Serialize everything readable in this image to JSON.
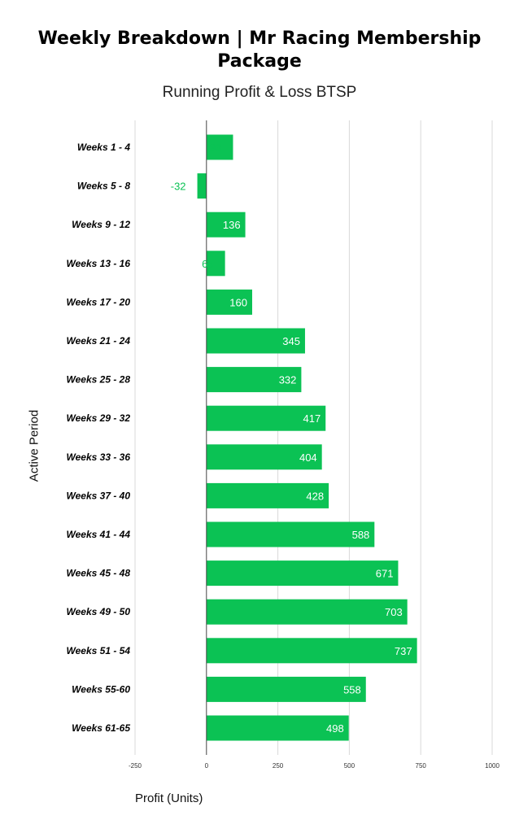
{
  "chart_data": {
    "type": "bar",
    "orientation": "horizontal",
    "title": "Weekly Breakdown | Mr Racing Membership Package",
    "subtitle": "Running Profit & Loss BTSP",
    "xlabel": "Profit (Units)",
    "ylabel": "Active Period",
    "categories": [
      "Weeks 1 - 4",
      "Weeks 5 - 8",
      "Weeks 9 - 12",
      "Weeks 13 - 16",
      "Weeks 17 - 20",
      "Weeks 21 - 24",
      "Weeks 25 - 28",
      "Weeks 29 - 32",
      "Weeks 33 - 36",
      "Weeks 37 - 40",
      "Weeks 41 - 44",
      "Weeks 45 - 48",
      "Weeks 49 - 50",
      "Weeks 51 - 54",
      "Weeks 55-60",
      "Weeks 61-65"
    ],
    "values": [
      93,
      -32,
      136,
      65,
      160,
      345,
      332,
      417,
      404,
      428,
      588,
      671,
      703,
      737,
      558,
      498
    ],
    "xlim": [
      -250,
      1000
    ],
    "xticks": [
      "-250",
      "0",
      "250",
      "500",
      "750",
      "1000"
    ],
    "grid": true,
    "legend": "none",
    "bar_color": "#0bc254",
    "value_label_color_inside": "#ffffff",
    "value_label_color_outside": "#0bc254"
  }
}
